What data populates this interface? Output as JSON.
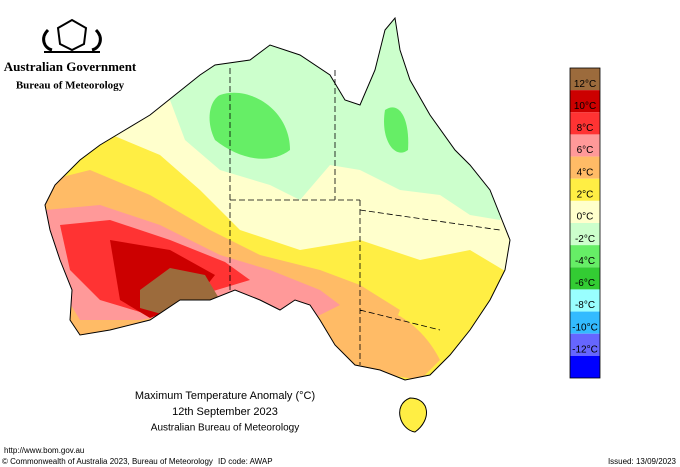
{
  "header": {
    "agency": "Australian Government",
    "bureau": "Bureau of Meteorology"
  },
  "map": {
    "title": "Maximum Temperature Anomaly (°C)",
    "date": "12th September 2023",
    "source": "Australian Bureau of Meteorology"
  },
  "legend": {
    "colors": [
      "#9c6b3c",
      "#cc0000",
      "#ff3333",
      "#ff9999",
      "#ffbb66",
      "#ffee44",
      "#ffffcc",
      "#ccffcc",
      "#66ee66",
      "#33cc33",
      "#99ffff",
      "#33bbff",
      "#6666ff",
      "#0000ff"
    ],
    "labels": [
      "12°C",
      "10°C",
      "8°C",
      "6°C",
      "4°C",
      "2°C",
      "0°C",
      "-2°C",
      "-4°C",
      "-6°C",
      "-8°C",
      "-10°C",
      "-12°C"
    ]
  },
  "footer": {
    "url": "http://www.bom.gov.au",
    "copyright": "© Commonwealth of Australia 2023, Bureau of Meteorology",
    "id_code": "ID code: AWAP",
    "issued": "Issued: 13/09/2023"
  }
}
